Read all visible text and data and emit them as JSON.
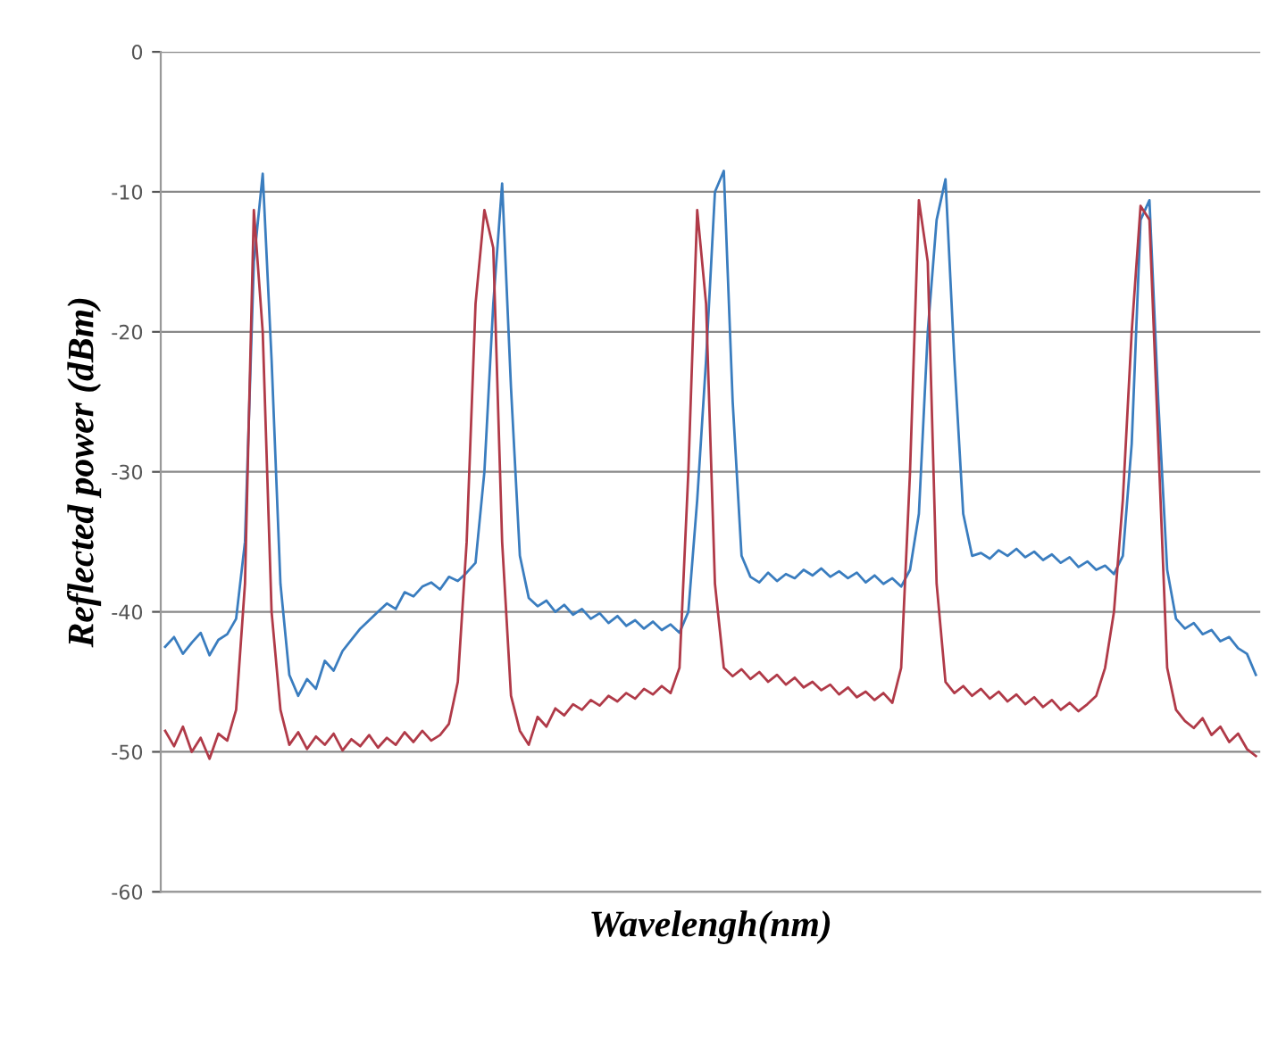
{
  "chart_data": {
    "type": "line",
    "xlabel": "Wavelengh(nm)",
    "ylabel": "Reflected power (dBm)",
    "categories": [
      null,
      null,
      null,
      null,
      null,
      null,
      null,
      null,
      null,
      null,
      null,
      null,
      null,
      null,
      null,
      null,
      null,
      null,
      null,
      null,
      null,
      null,
      null,
      null,
      null,
      null,
      null,
      null,
      null,
      null,
      null,
      null,
      null,
      null,
      null,
      null,
      null,
      null,
      null,
      null,
      null,
      null,
      null,
      null,
      null,
      null,
      null,
      null,
      null,
      null,
      null,
      null,
      null,
      null,
      null,
      null,
      null,
      null,
      null,
      null,
      null,
      null,
      null,
      null,
      null,
      null,
      null,
      null,
      null,
      null,
      null,
      null,
      null,
      null,
      null,
      null,
      null,
      null,
      null,
      null,
      null,
      null,
      null,
      null,
      null,
      null,
      null,
      null,
      null,
      null,
      null,
      null,
      null,
      null,
      null,
      null,
      null,
      null,
      null,
      null,
      null,
      null,
      null,
      null,
      null,
      null,
      null,
      null,
      null,
      null,
      null,
      null,
      null,
      null,
      null,
      null,
      null,
      null,
      null,
      null,
      null,
      null,
      null,
      null
    ],
    "series": [
      {
        "color": "#3a7dbf",
        "values": [
          -42.5,
          -41.8,
          -43.0,
          -42.2,
          -41.5,
          -43.1,
          -42.0,
          -41.6,
          -40.5,
          -35,
          -15,
          -8.7,
          -22,
          -38,
          -44.5,
          -46,
          -44.8,
          -45.5,
          -43.5,
          -44.2,
          -42.8,
          -42,
          -41.2,
          -40.6,
          -40,
          -39.4,
          -39.8,
          -38.6,
          -38.9,
          -38.2,
          -37.9,
          -38.4,
          -37.5,
          -37.8,
          -37.2,
          -36.5,
          -30,
          -18,
          -9.4,
          -24,
          -36,
          -39,
          -39.6,
          -39.2,
          -40,
          -39.5,
          -40.2,
          -39.8,
          -40.5,
          -40.1,
          -40.8,
          -40.3,
          -41,
          -40.6,
          -41.2,
          -40.7,
          -41.3,
          -40.9,
          -41.5,
          -40,
          -32,
          -22,
          -10,
          -8.5,
          -25,
          -36,
          -37.5,
          -37.9,
          -37.2,
          -37.8,
          -37.3,
          -37.6,
          -37,
          -37.4,
          -36.9,
          -37.5,
          -37.1,
          -37.6,
          -37.2,
          -37.9,
          -37.4,
          -38,
          -37.6,
          -38.2,
          -37,
          -33,
          -20,
          -12,
          -9.1,
          -22,
          -33,
          -36,
          -35.8,
          -36.2,
          -35.6,
          -36,
          -35.5,
          -36.1,
          -35.7,
          -36.3,
          -35.9,
          -36.5,
          -36.1,
          -36.8,
          -36.4,
          -37,
          -36.7,
          -37.3,
          -36,
          -28,
          -12,
          -10.6,
          -25,
          -37,
          -40.5,
          -41.2,
          -40.8,
          -41.6,
          -41.3,
          -42.1,
          -41.8,
          -42.6,
          -43,
          -44.5
        ]
      },
      {
        "color": "#b03a48",
        "values": [
          -48.5,
          -49.6,
          -48.2,
          -50,
          -49,
          -50.5,
          -48.7,
          -49.2,
          -47,
          -38,
          -11.3,
          -20,
          -40,
          -47,
          -49.5,
          -48.6,
          -49.8,
          -48.9,
          -49.5,
          -48.7,
          -49.9,
          -49.1,
          -49.6,
          -48.8,
          -49.7,
          -49,
          -49.5,
          -48.6,
          -49.3,
          -48.5,
          -49.2,
          -48.8,
          -48,
          -45,
          -35,
          -18,
          -11.3,
          -14,
          -35,
          -46,
          -48.5,
          -49.5,
          -47.5,
          -48.2,
          -46.9,
          -47.4,
          -46.6,
          -47,
          -46.3,
          -46.7,
          -46,
          -46.4,
          -45.8,
          -46.2,
          -45.5,
          -45.9,
          -45.3,
          -45.8,
          -44,
          -30,
          -11.3,
          -18,
          -38,
          -44,
          -44.6,
          -44.1,
          -44.8,
          -44.3,
          -45,
          -44.5,
          -45.2,
          -44.7,
          -45.4,
          -45,
          -45.6,
          -45.2,
          -45.9,
          -45.4,
          -46.1,
          -45.7,
          -46.3,
          -45.8,
          -46.5,
          -44,
          -30,
          -10.6,
          -15,
          -38,
          -45,
          -45.8,
          -45.3,
          -46,
          -45.5,
          -46.2,
          -45.7,
          -46.4,
          -45.9,
          -46.6,
          -46.1,
          -46.8,
          -46.3,
          -47,
          -46.5,
          -47.1,
          -46.6,
          -46,
          -44,
          -40,
          -32,
          -20,
          -11,
          -12,
          -28,
          -44,
          -47,
          -47.8,
          -48.3,
          -47.6,
          -48.8,
          -48.2,
          -49.3,
          -48.7,
          -49.8,
          -50.3
        ]
      }
    ],
    "ylim": [
      -60,
      0
    ],
    "yticks": [
      0,
      -10,
      -20,
      -30,
      -40,
      -50,
      -60
    ],
    "grid": "y",
    "tick_labels": "y"
  }
}
